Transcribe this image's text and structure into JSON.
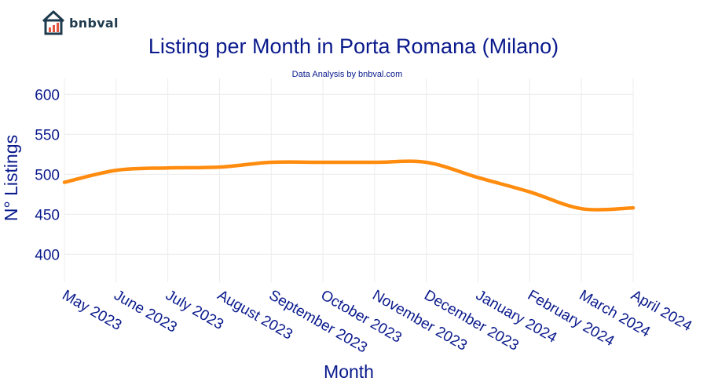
{
  "brand": {
    "name": "bnbval",
    "logo_icon": "house-chart-icon"
  },
  "chart_data": {
    "type": "line",
    "title": "Listing per Month in Porta Romana (Milano)",
    "subtitle": "Data Analysis by bnbval.com",
    "xlabel": "Month",
    "ylabel": "N° Listings",
    "categories": [
      "May 2023",
      "June 2023",
      "July 2023",
      "August 2023",
      "September 2023",
      "October 2023",
      "November 2023",
      "December 2023",
      "January 2024",
      "February 2024",
      "March 2024",
      "April 2024"
    ],
    "series": [
      {
        "name": "Listings",
        "color": "#ff8c0f",
        "values": [
          490,
          505,
          508,
          509,
          515,
          515,
          515,
          515,
          496,
          478,
          457,
          458
        ]
      }
    ],
    "y_ticks": [
      400,
      450,
      500,
      550,
      600
    ],
    "ylim": [
      365,
      620
    ],
    "grid": true
  }
}
